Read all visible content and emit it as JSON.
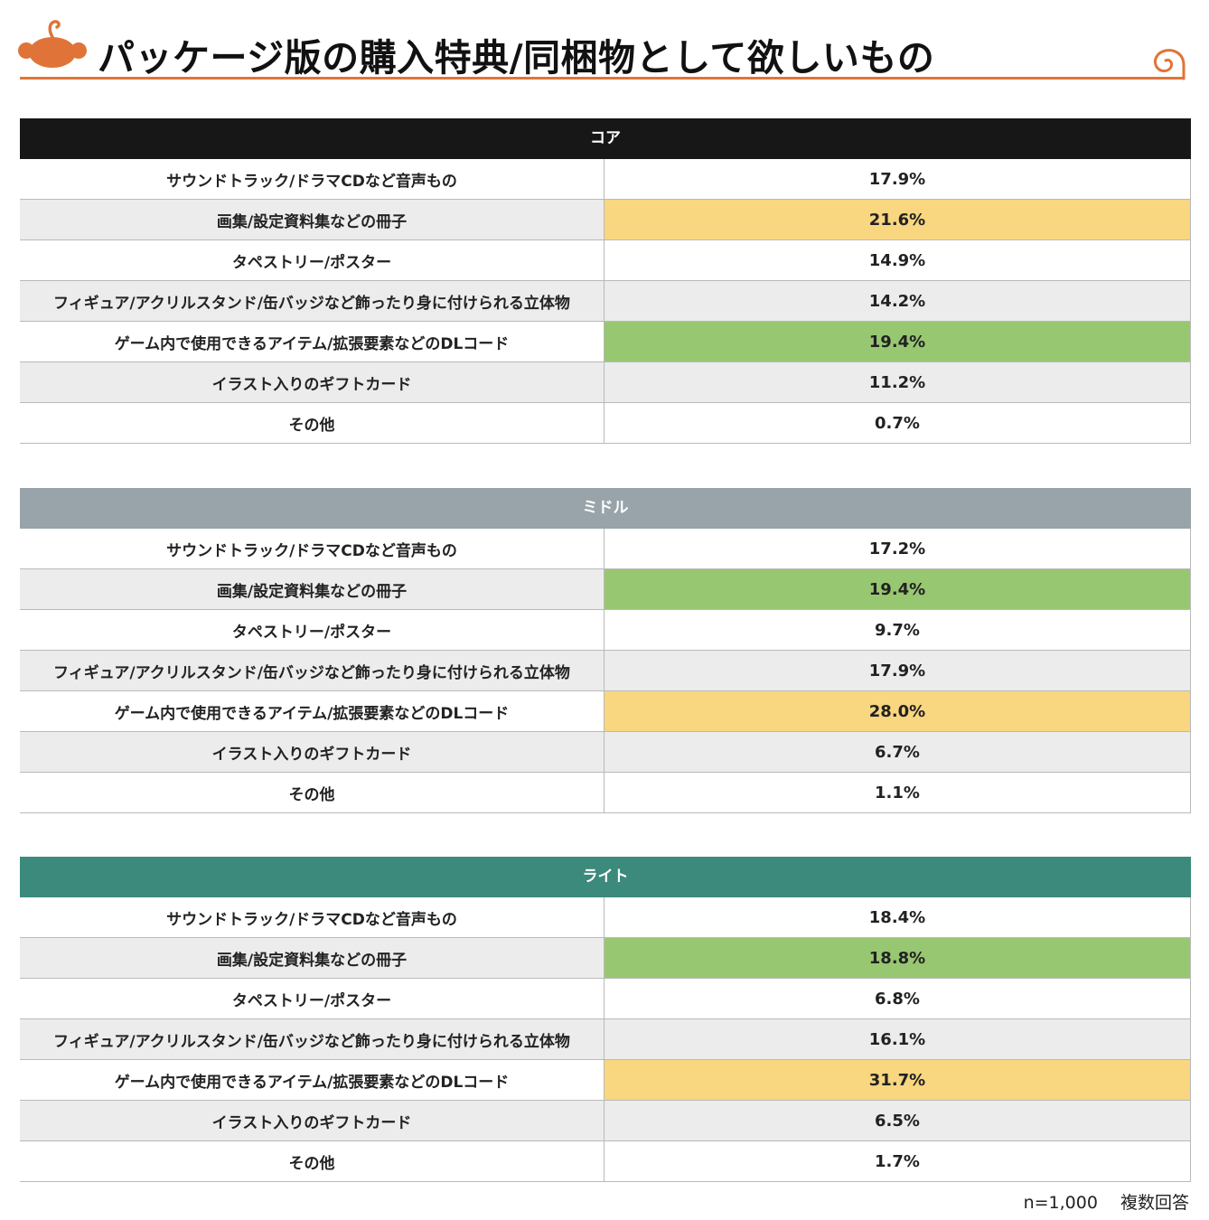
{
  "header": {
    "title": "パッケージ版の購入特典/同梱物として欲しいもの",
    "logo_icon": "monkey-logo-icon",
    "decoration_icon": "swirl-icon"
  },
  "colors": {
    "accent": "#e07438",
    "highlight_top": "#f9d680",
    "highlight_second": "#98c772",
    "row_alt": "#ececec"
  },
  "chart_data": [
    {
      "type": "table",
      "title": "コア",
      "header_color": "#171717",
      "categories": [
        "サウンドトラック/ドラマCDなど音声もの",
        "画集/設定資料集などの冊子",
        "タペストリー/ポスター",
        "フィギュア/アクリルスタンド/缶バッジなど飾ったり身に付けられる立体物",
        "ゲーム内で使用できるアイテム/拡張要素などのDLコード",
        "イラスト入りのギフトカード",
        "その他"
      ],
      "values": [
        17.9,
        21.6,
        14.9,
        14.2,
        19.4,
        11.2,
        0.7
      ],
      "labels": [
        "17.9%",
        "21.6%",
        "14.9%",
        "14.2%",
        "19.4%",
        "11.2%",
        "0.7%"
      ]
    },
    {
      "type": "table",
      "title": "ミドル",
      "header_color": "#98a4a9",
      "categories": [
        "サウンドトラック/ドラマCDなど音声もの",
        "画集/設定資料集などの冊子",
        "タペストリー/ポスター",
        "フィギュア/アクリルスタンド/缶バッジなど飾ったり身に付けられる立体物",
        "ゲーム内で使用できるアイテム/拡張要素などのDLコード",
        "イラスト入りのギフトカード",
        "その他"
      ],
      "values": [
        17.2,
        19.4,
        9.7,
        17.9,
        28.0,
        6.7,
        1.1
      ],
      "labels": [
        "17.2%",
        "19.4%",
        "9.7%",
        "17.9%",
        "28.0%",
        "6.7%",
        "1.1%"
      ]
    },
    {
      "type": "table",
      "title": "ライト",
      "header_color": "#3b8a7c",
      "categories": [
        "サウンドトラック/ドラマCDなど音声もの",
        "画集/設定資料集などの冊子",
        "タペストリー/ポスター",
        "フィギュア/アクリルスタンド/缶バッジなど飾ったり身に付けられる立体物",
        "ゲーム内で使用できるアイテム/拡張要素などのDLコード",
        "イラスト入りのギフトカード",
        "その他"
      ],
      "values": [
        18.4,
        18.8,
        6.8,
        16.1,
        31.7,
        6.5,
        1.7
      ],
      "labels": [
        "18.4%",
        "18.8%",
        "6.8%",
        "16.1%",
        "31.7%",
        "6.5%",
        "1.7%"
      ]
    }
  ],
  "footnote": "n=1,000　 複数回答"
}
